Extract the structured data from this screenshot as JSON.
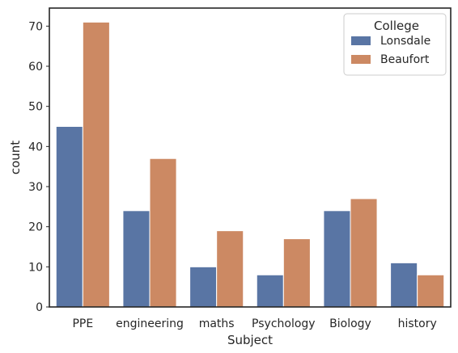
{
  "chart_data": {
    "type": "bar",
    "xlabel": "Subject",
    "ylabel": "count",
    "categories": [
      "PPE",
      "engineering",
      "maths",
      "Psychology",
      "Biology",
      "history"
    ],
    "ylim": [
      0,
      74.5
    ],
    "yticks": [
      0,
      10,
      20,
      30,
      40,
      50,
      60,
      70
    ],
    "grid": false,
    "legend": {
      "title": "College",
      "placement": "top-right"
    },
    "series": [
      {
        "name": "Lonsdale",
        "color": "#5975a4",
        "values": [
          45,
          24,
          10,
          8,
          24,
          11
        ]
      },
      {
        "name": "Beaufort",
        "color": "#cc8963",
        "values": [
          71,
          37,
          19,
          17,
          27,
          8
        ]
      }
    ]
  }
}
